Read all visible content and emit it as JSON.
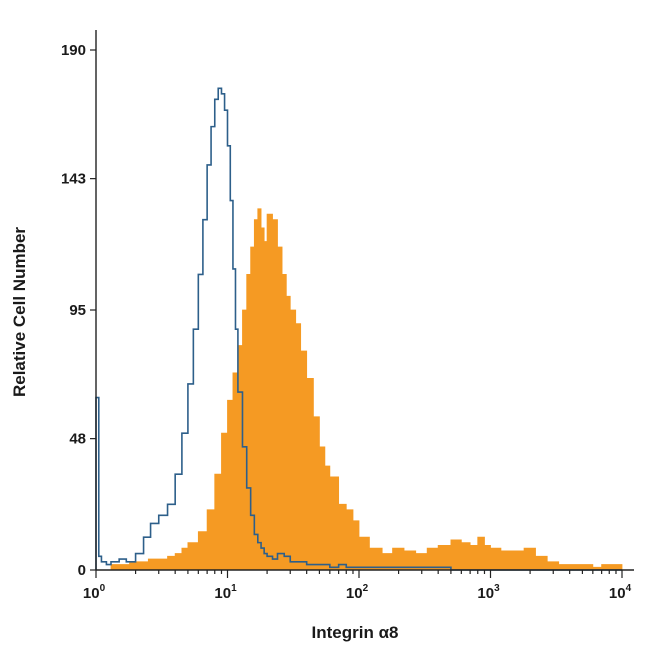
{
  "chart_data": {
    "type": "area",
    "xlabel": "Integrin α8",
    "ylabel": "Relative Cell Number",
    "x_scale": "log",
    "xlim": [
      1,
      10000
    ],
    "ylim": [
      0,
      190
    ],
    "x_ticks": [
      {
        "value": 1,
        "base": "10",
        "exp": "0"
      },
      {
        "value": 10,
        "base": "10",
        "exp": "1"
      },
      {
        "value": 100,
        "base": "10",
        "exp": "2"
      },
      {
        "value": 1000,
        "base": "10",
        "exp": "3"
      },
      {
        "value": 10000,
        "base": "10",
        "exp": "4"
      }
    ],
    "y_ticks": [
      0,
      48,
      95,
      143,
      190
    ],
    "grid": false,
    "legend": "none",
    "series": [
      {
        "style": "filled",
        "color": "#f59a23",
        "x": [
          1.3,
          1.5,
          1.8,
          2.0,
          2.5,
          3.0,
          3.5,
          4.0,
          4.5,
          5.0,
          6.0,
          7.0,
          8.0,
          9.0,
          10.0,
          11.0,
          12.0,
          13.0,
          14.0,
          15.0,
          16.0,
          17.0,
          18.0,
          19.0,
          20.0,
          22.0,
          24.0,
          26.0,
          28.0,
          30.0,
          33.0,
          36.0,
          40.0,
          45.0,
          50.0,
          55.0,
          60.0,
          70.0,
          80.0,
          90.0,
          100.0,
          120.0,
          150.0,
          180.0,
          220.0,
          270.0,
          330.0,
          400.0,
          500.0,
          600.0,
          700.0,
          800.0,
          900.0,
          1000.0,
          1200.0,
          1500.0,
          1800.0,
          2200.0,
          2700.0,
          3300.0,
          4000.0,
          5000.0,
          6000.0,
          7000.0,
          8000.0,
          9000.0,
          10000.0
        ],
        "values": [
          2,
          2,
          3,
          3,
          4,
          4,
          5,
          6,
          8,
          10,
          14,
          22,
          35,
          50,
          62,
          72,
          82,
          95,
          108,
          118,
          128,
          132,
          125,
          120,
          130,
          128,
          118,
          108,
          100,
          95,
          90,
          80,
          70,
          56,
          45,
          38,
          34,
          24,
          22,
          18,
          12,
          8,
          6,
          8,
          7,
          6,
          8,
          9,
          11,
          10,
          9,
          12,
          9,
          8,
          7,
          7,
          8,
          5,
          3,
          2,
          2,
          2,
          1,
          2,
          2,
          2,
          1
        ]
      },
      {
        "style": "outline",
        "color": "#2d5f8a",
        "x": [
          1.0,
          1.05,
          1.1,
          1.2,
          1.3,
          1.5,
          1.7,
          2.0,
          2.3,
          2.6,
          3.0,
          3.5,
          4.0,
          4.5,
          5.0,
          5.5,
          6.0,
          6.5,
          7.0,
          7.5,
          8.0,
          8.5,
          9.0,
          9.5,
          10.0,
          10.5,
          11.0,
          11.5,
          12.0,
          13.0,
          14.0,
          15.0,
          16.0,
          17.0,
          18.0,
          19.0,
          20.0,
          22.0,
          24.0,
          27.0,
          30.0,
          35.0,
          40.0,
          50.0,
          60.0,
          70.0,
          80.0,
          90.0,
          100.0,
          150.0,
          200.0,
          300.0,
          500.0,
          1000.0,
          2000.0,
          5000.0,
          10000.0
        ],
        "values": [
          63,
          5,
          3,
          2,
          3,
          4,
          3,
          6,
          12,
          17,
          20,
          24,
          35,
          50,
          68,
          88,
          108,
          128,
          148,
          162,
          172,
          176,
          174,
          168,
          155,
          135,
          110,
          88,
          65,
          45,
          30,
          20,
          13,
          10,
          8,
          6,
          5,
          4,
          6,
          5,
          3,
          3,
          2,
          2,
          1,
          2,
          1,
          1,
          1,
          1,
          1,
          1,
          0,
          0,
          0,
          0,
          0
        ]
      }
    ]
  }
}
